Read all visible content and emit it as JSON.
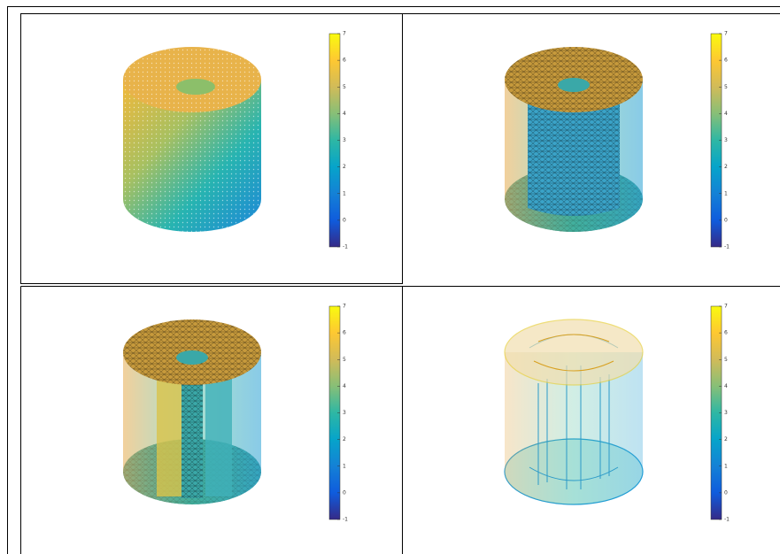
{
  "chart_data": [
    {
      "type": "surface",
      "clim": [
        -1,
        7
      ],
      "cticks": [
        -1,
        0,
        1,
        2,
        3,
        4,
        5,
        6,
        7
      ],
      "colormap": [
        "#352a87",
        "#0f5cdd",
        "#1481d6",
        "#06a4ca",
        "#2eb7a4",
        "#87bf77",
        "#d1bb59",
        "#fec832",
        "#f9fb0e"
      ]
    },
    {
      "type": "surface",
      "clim": [
        -1,
        7
      ],
      "cticks": [
        -1,
        0,
        1,
        2,
        3,
        4,
        5,
        6,
        7
      ],
      "colormap": [
        "#352a87",
        "#0f5cdd",
        "#1481d6",
        "#06a4ca",
        "#2eb7a4",
        "#87bf77",
        "#d1bb59",
        "#fec832",
        "#f9fb0e"
      ]
    },
    {
      "type": "surface",
      "clim": [
        -1,
        7
      ],
      "cticks": [
        -1,
        0,
        1,
        2,
        3,
        4,
        5,
        6,
        7
      ],
      "colormap": [
        "#352a87",
        "#0f5cdd",
        "#1481d6",
        "#06a4ca",
        "#2eb7a4",
        "#87bf77",
        "#d1bb59",
        "#fec832",
        "#f9fb0e"
      ]
    },
    {
      "type": "surface",
      "clim": [
        -1,
        7
      ],
      "cticks": [
        -1,
        0,
        1,
        2,
        3,
        4,
        5,
        6,
        7
      ],
      "colormap": [
        "#352a87",
        "#0f5cdd",
        "#1481d6",
        "#06a4ca",
        "#2eb7a4",
        "#87bf77",
        "#d1bb59",
        "#fec832",
        "#f9fb0e"
      ]
    }
  ]
}
